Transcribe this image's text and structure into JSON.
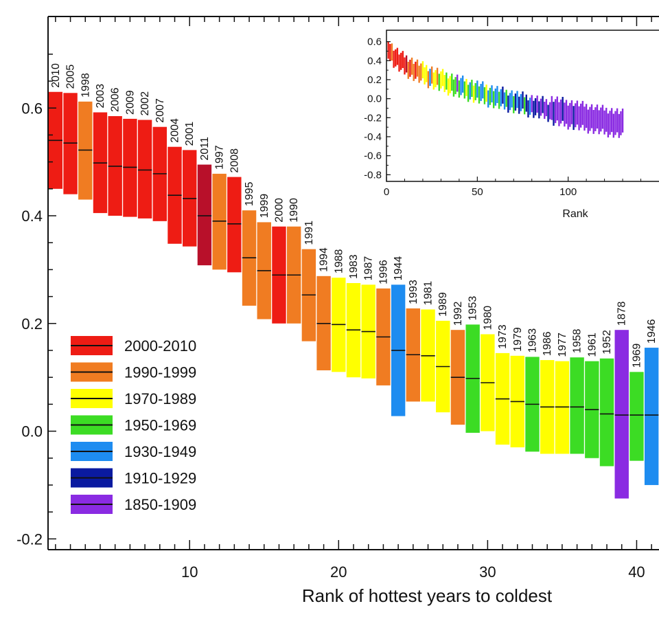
{
  "chart_data": [
    {
      "type": "bar",
      "xlabel": "Rank of hottest years to coldest",
      "ylabel": "",
      "xlim": [
        0.5,
        41.5
      ],
      "ylim": [
        -0.22,
        0.77
      ],
      "xticks": [
        10,
        20,
        30,
        40
      ],
      "yticks": [
        -0.2,
        0.0,
        0.2,
        0.4,
        0.6
      ],
      "ytick_labels": [
        "-0.2",
        "0.0",
        "0.2",
        "0.4",
        "0.6"
      ],
      "legend": [
        {
          "label": "2000-2010",
          "color": "#ee1c14"
        },
        {
          "label": "1990-1999",
          "color": "#f07c22"
        },
        {
          "label": "1970-1989",
          "color": "#ffff00"
        },
        {
          "label": "1950-1969",
          "color": "#3cdc24"
        },
        {
          "label": "1930-1949",
          "color": "#1e8cf0"
        },
        {
          "label": "1910-1929",
          "color": "#0a1aa0"
        },
        {
          "label": "1850-1909",
          "color": "#8a2be2"
        }
      ],
      "legend_position": "lower-left",
      "bars": [
        {
          "rank": 1,
          "year": "2010",
          "low": 0.45,
          "mid": 0.54,
          "high": 0.63,
          "color": "#ee1c14"
        },
        {
          "rank": 2,
          "year": "2005",
          "low": 0.44,
          "mid": 0.535,
          "high": 0.628,
          "color": "#ee1c14"
        },
        {
          "rank": 3,
          "year": "1998",
          "low": 0.43,
          "mid": 0.522,
          "high": 0.612,
          "color": "#f07c22"
        },
        {
          "rank": 4,
          "year": "2003",
          "low": 0.405,
          "mid": 0.498,
          "high": 0.592,
          "color": "#ee1c14"
        },
        {
          "rank": 5,
          "year": "2006",
          "low": 0.4,
          "mid": 0.492,
          "high": 0.585,
          "color": "#ee1c14"
        },
        {
          "rank": 6,
          "year": "2009",
          "low": 0.398,
          "mid": 0.49,
          "high": 0.58,
          "color": "#ee1c14"
        },
        {
          "rank": 7,
          "year": "2002",
          "low": 0.395,
          "mid": 0.485,
          "high": 0.578,
          "color": "#ee1c14"
        },
        {
          "rank": 8,
          "year": "2007",
          "low": 0.39,
          "mid": 0.478,
          "high": 0.565,
          "color": "#ee1c14"
        },
        {
          "rank": 9,
          "year": "2004",
          "low": 0.348,
          "mid": 0.438,
          "high": 0.528,
          "color": "#ee1c14"
        },
        {
          "rank": 10,
          "year": "2001",
          "low": 0.343,
          "mid": 0.432,
          "high": 0.522,
          "color": "#ee1c14"
        },
        {
          "rank": 11,
          "year": "2011",
          "low": 0.308,
          "mid": 0.4,
          "high": 0.495,
          "color": "#b8102a"
        },
        {
          "rank": 12,
          "year": "1997",
          "low": 0.3,
          "mid": 0.39,
          "high": 0.478,
          "color": "#f07c22"
        },
        {
          "rank": 13,
          "year": "2008",
          "low": 0.295,
          "mid": 0.385,
          "high": 0.472,
          "color": "#ee1c14"
        },
        {
          "rank": 14,
          "year": "1995",
          "low": 0.233,
          "mid": 0.322,
          "high": 0.41,
          "color": "#f07c22"
        },
        {
          "rank": 15,
          "year": "1999",
          "low": 0.208,
          "mid": 0.298,
          "high": 0.388,
          "color": "#f07c22"
        },
        {
          "rank": 16,
          "year": "2000",
          "low": 0.2,
          "mid": 0.29,
          "high": 0.38,
          "color": "#ee1c14"
        },
        {
          "rank": 17,
          "year": "1990",
          "low": 0.2,
          "mid": 0.29,
          "high": 0.38,
          "color": "#f07c22"
        },
        {
          "rank": 18,
          "year": "1991",
          "low": 0.167,
          "mid": 0.253,
          "high": 0.338,
          "color": "#f07c22"
        },
        {
          "rank": 19,
          "year": "1994",
          "low": 0.113,
          "mid": 0.2,
          "high": 0.288,
          "color": "#f07c22"
        },
        {
          "rank": 20,
          "year": "1988",
          "low": 0.11,
          "mid": 0.198,
          "high": 0.285,
          "color": "#ffff00"
        },
        {
          "rank": 21,
          "year": "1983",
          "low": 0.1,
          "mid": 0.188,
          "high": 0.275,
          "color": "#ffff00"
        },
        {
          "rank": 22,
          "year": "1987",
          "low": 0.098,
          "mid": 0.185,
          "high": 0.272,
          "color": "#ffff00"
        },
        {
          "rank": 23,
          "year": "1996",
          "low": 0.085,
          "mid": 0.175,
          "high": 0.265,
          "color": "#f07c22"
        },
        {
          "rank": 24,
          "year": "1944",
          "low": 0.028,
          "mid": 0.15,
          "high": 0.272,
          "color": "#1e8cf0"
        },
        {
          "rank": 25,
          "year": "1993",
          "low": 0.055,
          "mid": 0.142,
          "high": 0.228,
          "color": "#f07c22"
        },
        {
          "rank": 26,
          "year": "1981",
          "low": 0.055,
          "mid": 0.14,
          "high": 0.226,
          "color": "#ffff00"
        },
        {
          "rank": 27,
          "year": "1989",
          "low": 0.035,
          "mid": 0.12,
          "high": 0.205,
          "color": "#ffff00"
        },
        {
          "rank": 28,
          "year": "1992",
          "low": 0.012,
          "mid": 0.1,
          "high": 0.188,
          "color": "#f07c22"
        },
        {
          "rank": 29,
          "year": "1953",
          "low": -0.003,
          "mid": 0.098,
          "high": 0.198,
          "color": "#3cdc24"
        },
        {
          "rank": 30,
          "year": "1980",
          "low": 0.0,
          "mid": 0.09,
          "high": 0.18,
          "color": "#ffff00"
        },
        {
          "rank": 31,
          "year": "1973",
          "low": -0.025,
          "mid": 0.06,
          "high": 0.145,
          "color": "#ffff00"
        },
        {
          "rank": 32,
          "year": "1979",
          "low": -0.03,
          "mid": 0.055,
          "high": 0.14,
          "color": "#ffff00"
        },
        {
          "rank": 33,
          "year": "1963",
          "low": -0.038,
          "mid": 0.05,
          "high": 0.138,
          "color": "#3cdc24"
        },
        {
          "rank": 34,
          "year": "1986",
          "low": -0.042,
          "mid": 0.045,
          "high": 0.132,
          "color": "#ffff00"
        },
        {
          "rank": 35,
          "year": "1977",
          "low": -0.042,
          "mid": 0.045,
          "high": 0.13,
          "color": "#ffff00"
        },
        {
          "rank": 36,
          "year": "1958",
          "low": -0.042,
          "mid": 0.045,
          "high": 0.137,
          "color": "#3cdc24"
        },
        {
          "rank": 37,
          "year": "1961",
          "low": -0.05,
          "mid": 0.04,
          "high": 0.13,
          "color": "#3cdc24"
        },
        {
          "rank": 38,
          "year": "1952",
          "low": -0.065,
          "mid": 0.032,
          "high": 0.135,
          "color": "#3cdc24"
        },
        {
          "rank": 39,
          "year": "1878",
          "low": -0.125,
          "mid": 0.03,
          "high": 0.188,
          "color": "#8a2be2"
        },
        {
          "rank": 40,
          "year": "1969",
          "low": -0.055,
          "mid": 0.03,
          "high": 0.11,
          "color": "#3cdc24"
        },
        {
          "rank": 41,
          "year": "1946",
          "low": -0.1,
          "mid": 0.03,
          "high": 0.155,
          "color": "#1e8cf0"
        }
      ]
    },
    {
      "type": "bar",
      "xlabel": "Rank",
      "ylabel": "",
      "xlim": [
        0,
        150
      ],
      "ylim": [
        -0.87,
        0.72
      ],
      "xticks": [
        0,
        50,
        100
      ],
      "yticks": [
        0.6,
        0.4,
        0.2,
        0.0,
        -0.2,
        -0.4,
        -0.6,
        -0.8
      ],
      "ytick_labels": [
        "0.6",
        "0.4",
        "0.2",
        "0.0",
        "-0.2",
        "-0.4",
        "-0.6",
        "-0.8"
      ],
      "trend": {
        "start_mid": 0.55,
        "end_mid": -0.27,
        "halfwidth": 0.09
      },
      "color_sequence": [
        "#ee1c14",
        "#ee1c14",
        "#f07c22",
        "#ee1c14",
        "#ee1c14",
        "#ee1c14",
        "#ee1c14",
        "#ee1c14",
        "#ee1c14",
        "#ee1c14",
        "#b8102a",
        "#f07c22",
        "#ee1c14",
        "#f07c22",
        "#f07c22",
        "#ee1c14",
        "#f07c22",
        "#f07c22",
        "#f07c22",
        "#ffff00",
        "#ffff00",
        "#ffff00",
        "#f07c22",
        "#1e8cf0",
        "#f07c22",
        "#ffff00",
        "#ffff00",
        "#f07c22",
        "#3cdc24",
        "#ffff00",
        "#ffff00",
        "#ffff00",
        "#3cdc24",
        "#ffff00",
        "#ffff00",
        "#3cdc24",
        "#3cdc24",
        "#3cdc24",
        "#8a2be2",
        "#3cdc24",
        "#1e8cf0",
        "#1e8cf0",
        "#3cdc24",
        "#ffff00",
        "#3cdc24",
        "#1e8cf0",
        "#3cdc24",
        "#ffff00",
        "#3cdc24",
        "#1e8cf0",
        "#3cdc24",
        "#1e8cf0",
        "#1e8cf0",
        "#3cdc24",
        "#ffff00",
        "#1e8cf0",
        "#3cdc24",
        "#1e8cf0",
        "#3cdc24",
        "#1e8cf0",
        "#1e8cf0",
        "#3cdc24",
        "#1e8cf0",
        "#0a1aa0",
        "#1e8cf0",
        "#3cdc24",
        "#0a1aa0",
        "#1e8cf0",
        "#1e8cf0",
        "#3cdc24",
        "#0a1aa0",
        "#1e8cf0",
        "#0a1aa0",
        "#1e8cf0",
        "#0a1aa0",
        "#3cdc24",
        "#0a1aa0",
        "#0a1aa0",
        "#1e8cf0",
        "#8a2be2",
        "#0a1aa0",
        "#0a1aa0",
        "#8a2be2",
        "#0a1aa0",
        "#8a2be2",
        "#0a1aa0",
        "#8a2be2",
        "#8a2be2",
        "#0a1aa0",
        "#8a2be2",
        "#8a2be2",
        "#0a1aa0",
        "#8a2be2",
        "#8a2be2",
        "#8a2be2",
        "#8a2be2",
        "#0a1aa0",
        "#8a2be2",
        "#8a2be2",
        "#8a2be2",
        "#8a2be2",
        "#8a2be2",
        "#0a1aa0",
        "#8a2be2",
        "#8a2be2",
        "#8a2be2",
        "#8a2be2",
        "#8a2be2",
        "#8a2be2",
        "#8a2be2",
        "#8a2be2",
        "#8a2be2",
        "#8a2be2",
        "#8a2be2",
        "#8a2be2",
        "#8a2be2",
        "#8a2be2",
        "#8a2be2",
        "#8a2be2",
        "#8a2be2",
        "#8a2be2",
        "#8a2be2",
        "#8a2be2",
        "#8a2be2",
        "#8a2be2",
        "#8a2be2",
        "#8a2be2",
        "#8a2be2",
        "#8a2be2",
        "#8a2be2"
      ]
    }
  ]
}
